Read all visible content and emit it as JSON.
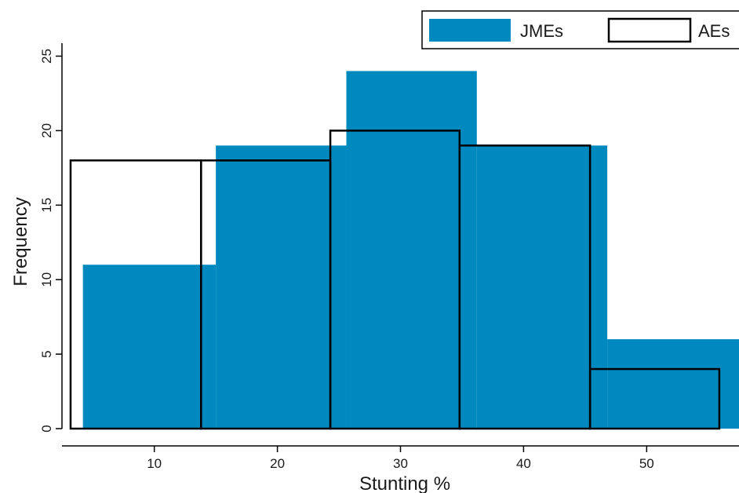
{
  "chart_data": {
    "type": "bar",
    "title": "",
    "xlabel": "Stunting %",
    "ylabel": "Frequency",
    "xlim": [
      2.5,
      57.5
    ],
    "ylim": [
      0,
      26
    ],
    "x_ticks": [
      10,
      20,
      30,
      40,
      50
    ],
    "y_ticks": [
      0,
      5,
      10,
      15,
      20,
      25
    ],
    "grid": false,
    "legend_position": "top-right",
    "series": [
      {
        "name": "JMEs",
        "style": "filled",
        "color": "#0089BE",
        "bins": [
          {
            "x0": 4.2,
            "x1": 15.0,
            "value": 11
          },
          {
            "x0": 15.0,
            "x1": 25.6,
            "value": 19
          },
          {
            "x0": 25.6,
            "x1": 36.2,
            "value": 24
          },
          {
            "x0": 36.2,
            "x1": 46.8,
            "value": 19
          },
          {
            "x0": 46.8,
            "x1": 57.5,
            "value": 6
          }
        ]
      },
      {
        "name": "AEs",
        "style": "outline",
        "color": "#000000",
        "bins": [
          {
            "x0": 3.2,
            "x1": 13.8,
            "value": 18
          },
          {
            "x0": 13.8,
            "x1": 24.3,
            "value": 18
          },
          {
            "x0": 24.3,
            "x1": 34.8,
            "value": 20
          },
          {
            "x0": 34.8,
            "x1": 45.4,
            "value": 19
          },
          {
            "x0": 45.4,
            "x1": 55.9,
            "value": 4
          }
        ]
      }
    ]
  }
}
